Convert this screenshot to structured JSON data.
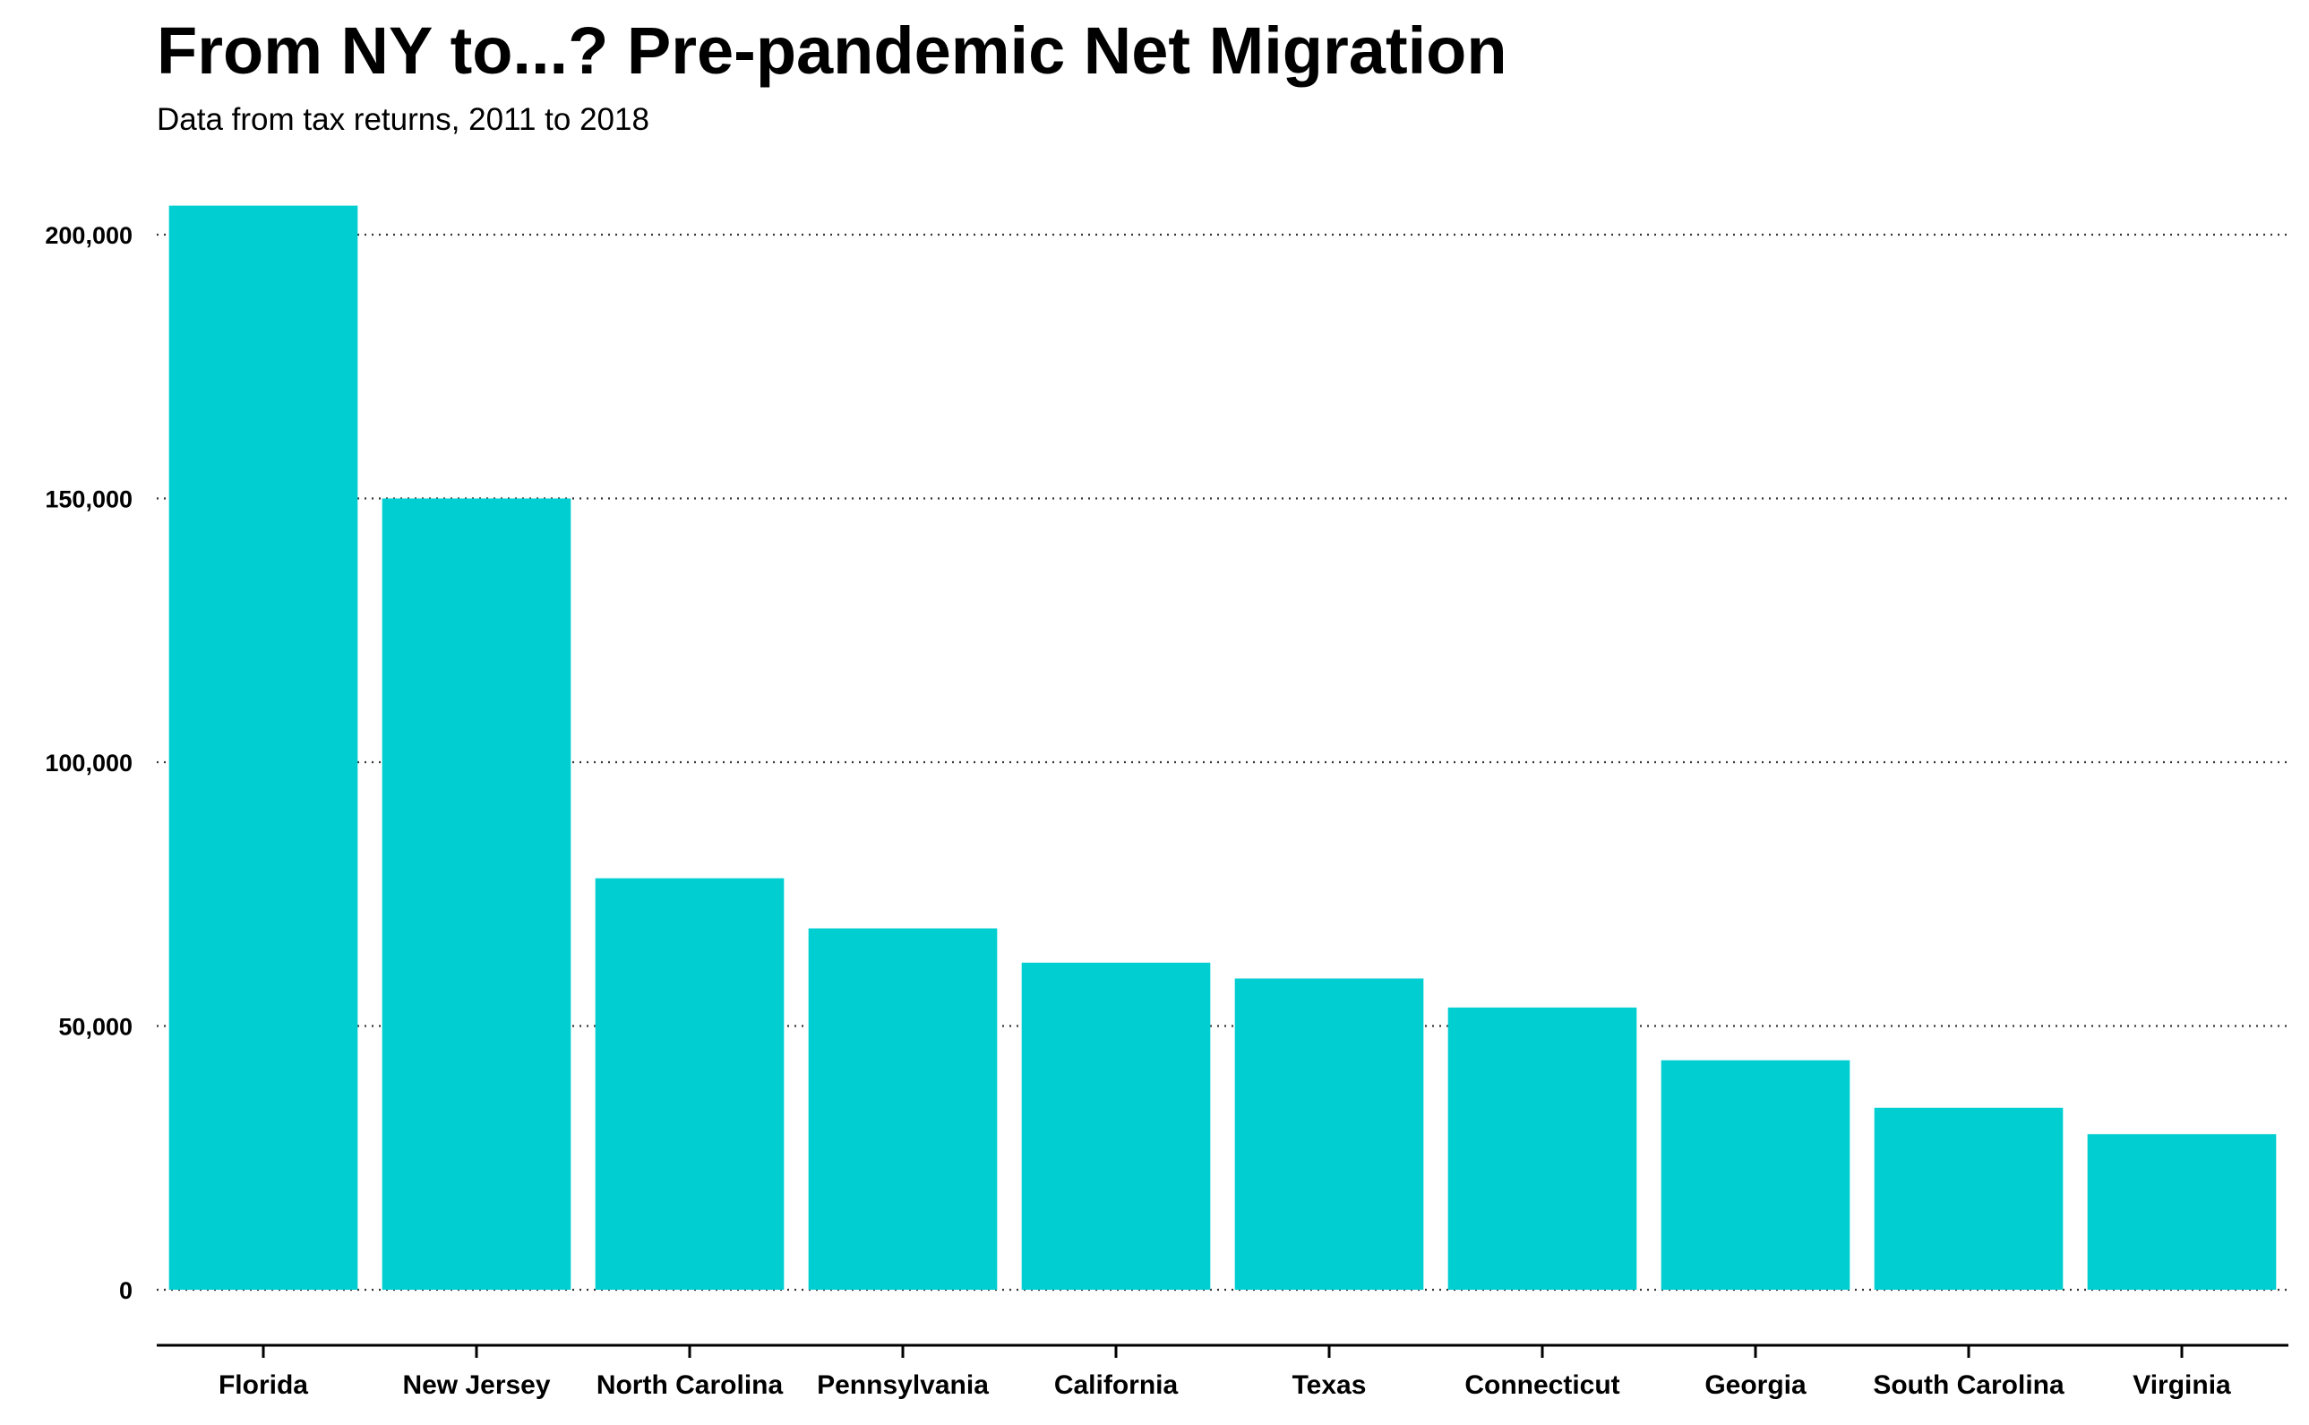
{
  "chart_data": {
    "type": "bar",
    "title": "From NY to...? Pre-pandemic Net Migration",
    "subtitle": "Data from tax returns, 2011 to 2018",
    "xlabel": "",
    "ylabel": "",
    "categories": [
      "Florida",
      "New Jersey",
      "North Carolina",
      "Pennsylvania",
      "California",
      "Texas",
      "Connecticut",
      "Georgia",
      "South Carolina",
      "Virginia"
    ],
    "values": [
      205500,
      150000,
      78000,
      68500,
      62000,
      59000,
      53500,
      43500,
      34500,
      29500
    ],
    "ylim": [
      0,
      210000
    ],
    "yticks": [
      0,
      50000,
      100000,
      150000,
      200000
    ],
    "ytick_labels": [
      "0",
      "50,000",
      "100,000",
      "150,000",
      "200,000"
    ],
    "grid": "horizontal dotted",
    "legend": "none",
    "bar_color": "#00CED1"
  }
}
